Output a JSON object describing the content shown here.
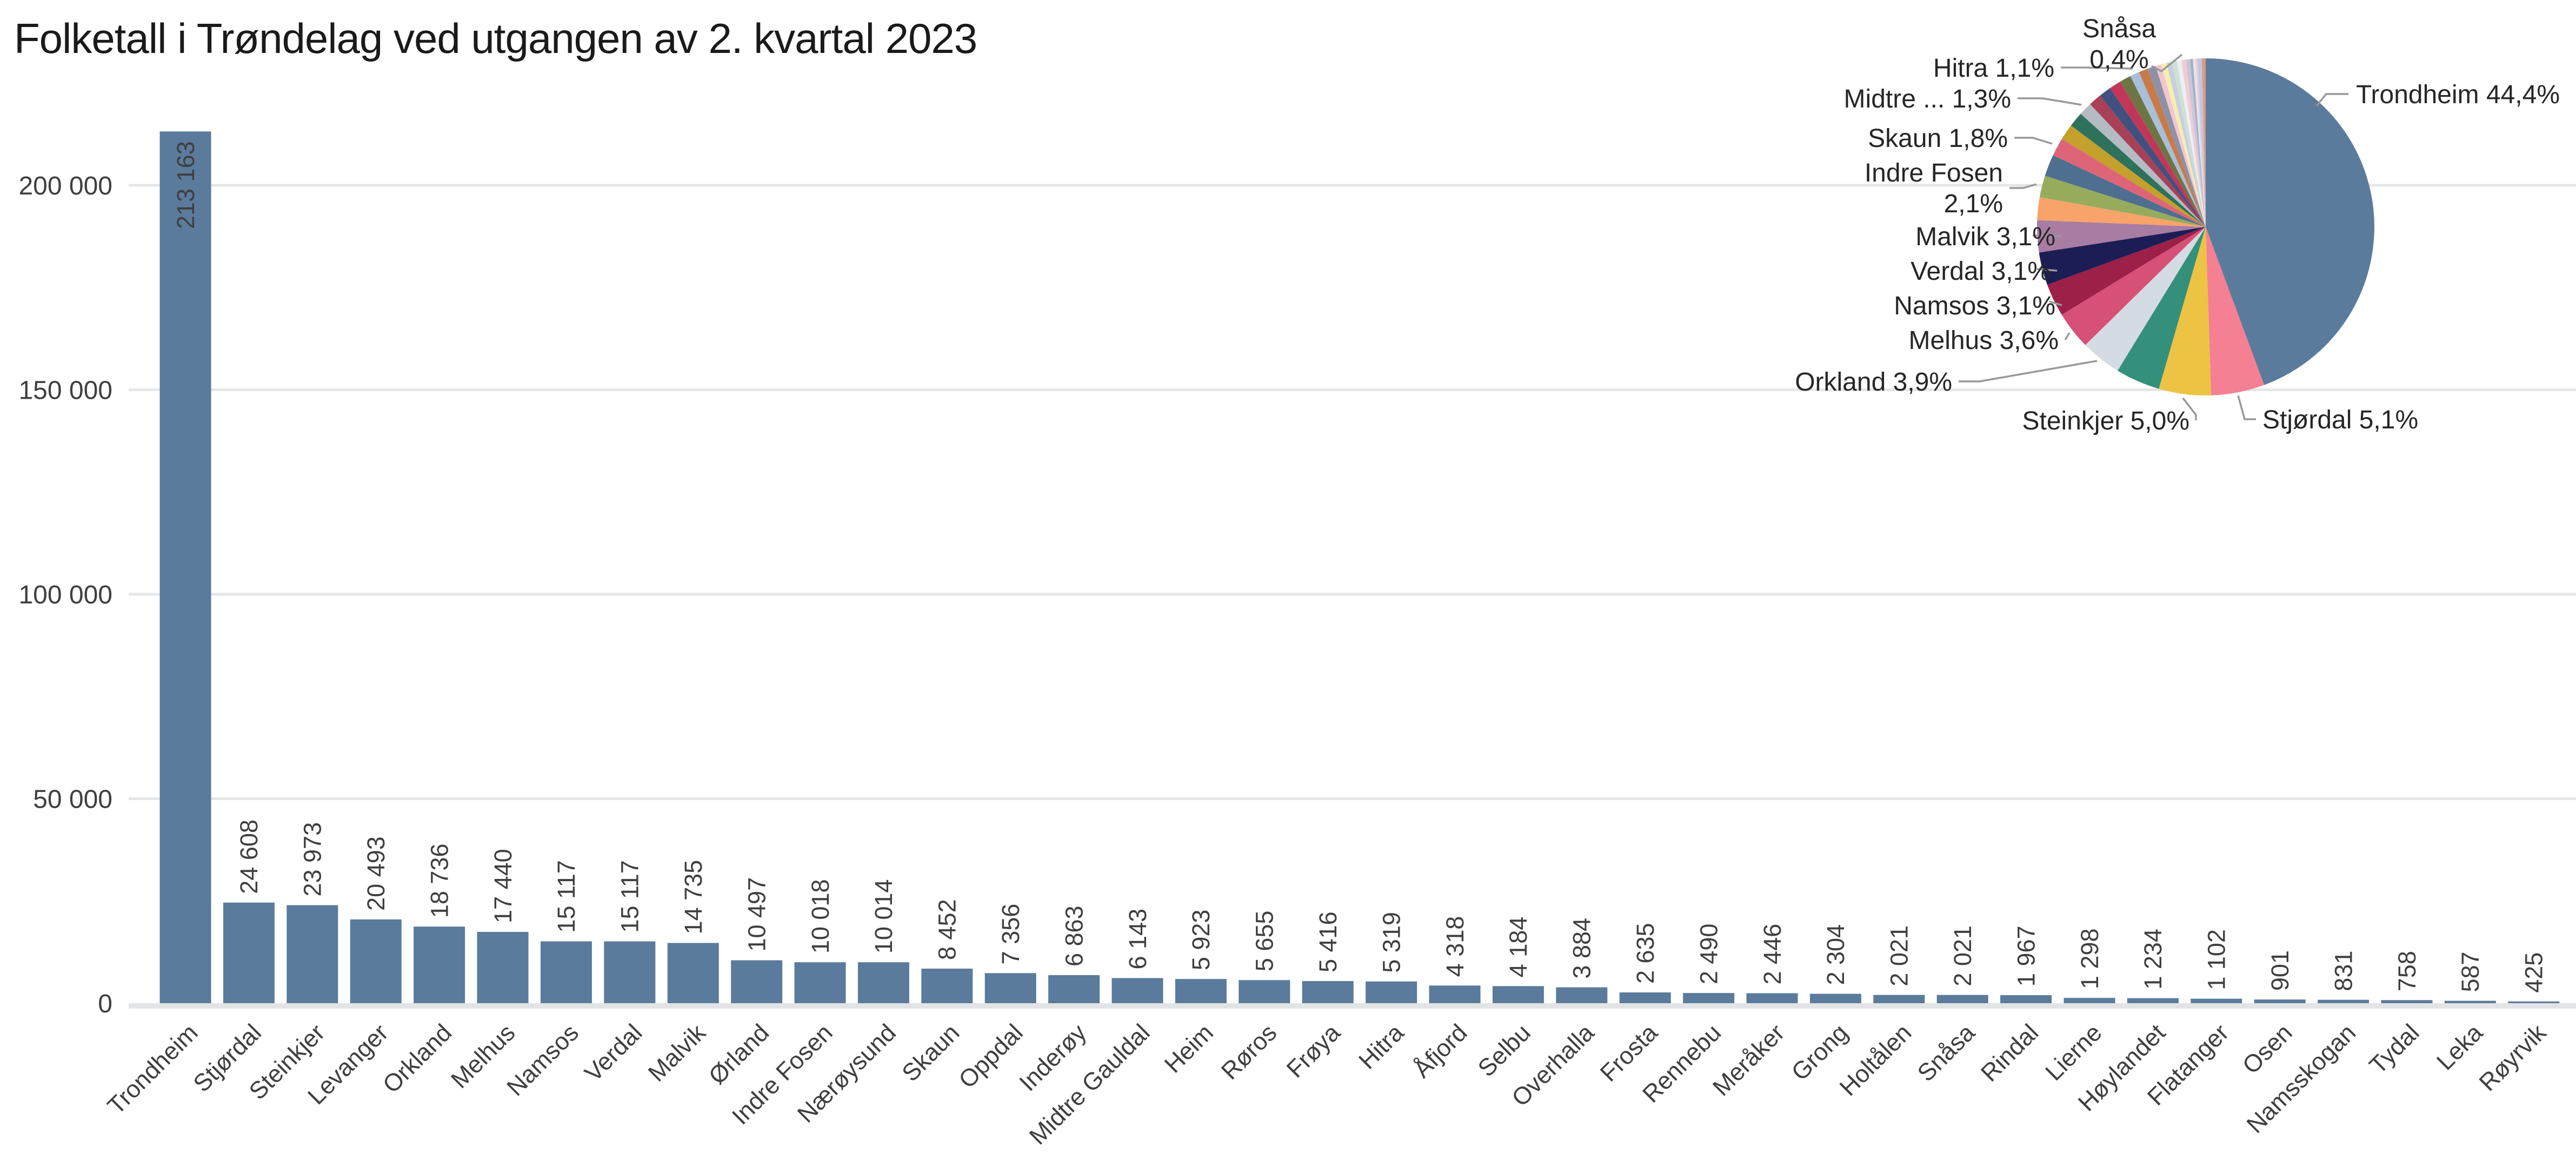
{
  "title": "Folketall i Trøndelag ved utgangen av 2. kvartal 2023",
  "y_axis": {
    "tick_labels": [
      "0",
      "50 000",
      "100 000",
      "150 000",
      "200 000"
    ],
    "tick_values": [
      0,
      50000,
      100000,
      150000,
      200000
    ]
  },
  "chart_data": [
    {
      "type": "bar",
      "title": "Folketall i Trøndelag ved utgangen av 2. kvartal 2023",
      "categories": [
        "Trondheim",
        "Stjørdal",
        "Steinkjer",
        "Levanger",
        "Orkland",
        "Melhus",
        "Namsos",
        "Verdal",
        "Malvik",
        "Ørland",
        "Indre Fosen",
        "Nærøysund",
        "Skaun",
        "Oppdal",
        "Inderøy",
        "Midtre Gauldal",
        "Heim",
        "Røros",
        "Frøya",
        "Hitra",
        "Åfjord",
        "Selbu",
        "Overhalla",
        "Frosta",
        "Rennebu",
        "Meråker",
        "Grong",
        "Holtålen",
        "Snåsa",
        "Rindal",
        "Lierne",
        "Høylandet",
        "Flatanger",
        "Osen",
        "Namsskogan",
        "Tydal",
        "Leka",
        "Røyrvik"
      ],
      "values": [
        213163,
        24608,
        23973,
        20493,
        18736,
        17440,
        15117,
        15117,
        14735,
        10497,
        10018,
        10014,
        8452,
        7356,
        6863,
        6143,
        5923,
        5655,
        5416,
        5319,
        4318,
        4184,
        3884,
        2635,
        2490,
        2446,
        2304,
        2021,
        2021,
        1967,
        1298,
        1234,
        1102,
        901,
        831,
        758,
        587,
        425
      ],
      "value_labels": [
        "213 163",
        "24 608",
        "23 973",
        "20 493",
        "18 736",
        "17 440",
        "15 117",
        "15 117",
        "14 735",
        "10 497",
        "10 018",
        "10 014",
        "8 452",
        "7 356",
        "6 863",
        "6 143",
        "5 923",
        "5 655",
        "5 416",
        "5 319",
        "4 318",
        "4 184",
        "3 884",
        "2 635",
        "2 490",
        "2 446",
        "2 304",
        "2 021",
        "2 021",
        "1 967",
        "1 298",
        "1 234",
        "1 102",
        "901",
        "831",
        "758",
        "587",
        "425"
      ],
      "xlabel": "",
      "ylabel": "",
      "ylim": [
        0,
        213163
      ],
      "ytick_labels": [
        "0",
        "50 000",
        "100 000",
        "150 000",
        "200 000"
      ],
      "ytick_values": [
        0,
        50000,
        100000,
        150000,
        200000
      ],
      "grid": true,
      "legend": false
    },
    {
      "type": "pie",
      "categories": [
        "Trondheim",
        "Stjørdal",
        "Steinkjer",
        "Levanger",
        "Orkland",
        "Melhus",
        "Namsos",
        "Verdal",
        "Malvik",
        "Ørland",
        "Indre Fosen",
        "Nærøysund",
        "Skaun",
        "Oppdal",
        "Inderøy",
        "Midtre Gauldal",
        "Heim",
        "Røros",
        "Frøya",
        "Hitra",
        "Åfjord",
        "Selbu",
        "Overhalla",
        "Frosta",
        "Rennebu",
        "Meråker",
        "Grong",
        "Holtålen",
        "Snåsa",
        "Rindal",
        "Lierne",
        "Høylandet",
        "Flatanger",
        "Osen",
        "Namsskogan",
        "Tydal",
        "Leka",
        "Røyrvik"
      ],
      "values": [
        213163,
        24608,
        23973,
        20493,
        18736,
        17440,
        15117,
        15117,
        14735,
        10497,
        10018,
        10014,
        8452,
        7356,
        6863,
        6143,
        5923,
        5655,
        5416,
        5319,
        4318,
        4184,
        3884,
        2635,
        2490,
        2446,
        2304,
        2021,
        2021,
        1967,
        1298,
        1234,
        1102,
        901,
        831,
        758,
        587,
        425
      ],
      "start_angle_deg": -90,
      "direction": "clockwise",
      "callouts": [
        {
          "name": "Trondheim",
          "lines": [
            "Trondheim 44,4%"
          ]
        },
        {
          "name": "Stjørdal",
          "lines": [
            "Stjørdal 5,1%"
          ]
        },
        {
          "name": "Steinkjer",
          "lines": [
            "Steinkjer 5,0%"
          ]
        },
        {
          "name": "Orkland",
          "lines": [
            "Orkland 3,9%"
          ]
        },
        {
          "name": "Melhus",
          "lines": [
            "Melhus 3,6%"
          ]
        },
        {
          "name": "Namsos",
          "lines": [
            "Namsos 3,1%"
          ]
        },
        {
          "name": "Verdal",
          "lines": [
            "Verdal 3,1%"
          ]
        },
        {
          "name": "Malvik",
          "lines": [
            "Malvik 3,1%"
          ]
        },
        {
          "name": "Indre Fosen",
          "lines": [
            "Indre Fosen",
            "2,1%"
          ]
        },
        {
          "name": "Skaun",
          "lines": [
            "Skaun 1,8%"
          ]
        },
        {
          "name": "Midtre Gauldal",
          "lines": [
            "Midtre ... 1,3%"
          ]
        },
        {
          "name": "Hitra",
          "lines": [
            "Hitra 1,1%"
          ]
        },
        {
          "name": "Snåsa",
          "lines": [
            "Snåsa",
            "0,4%"
          ]
        }
      ]
    }
  ],
  "colors": {
    "bar": "#5b7b9c",
    "gridline": "#e4e6e8",
    "axis_line": "#e2e4e6",
    "label_text": "#3f3f3f",
    "title_text": "#1a1a1a",
    "leader_line": "#999999",
    "pie_palette": [
      "#5b7b9c",
      "#f57f93",
      "#ecc343",
      "#35907b",
      "#d5dbe3",
      "#d75077",
      "#9c2047",
      "#1d1d56",
      "#a87ca3",
      "#f8a369",
      "#97ab5c",
      "#4e6f90",
      "#de6577",
      "#c4a02c",
      "#2e715d",
      "#b4bbc3",
      "#a84058",
      "#41517f",
      "#c23659",
      "#6d7544",
      "#a9bed8",
      "#c77b49",
      "#8d91a8",
      "#f3c6cf",
      "#f6eeb0",
      "#c6d0de",
      "#cfe0d6",
      "#edeff2",
      "#f2ccd4",
      "#cdc5da",
      "#9fb2c9",
      "#e4e6e9",
      "#f0c8d2",
      "#b5c7de",
      "#c6cacf",
      "#c89cab",
      "#d98da0",
      "#e8a23c"
    ]
  }
}
